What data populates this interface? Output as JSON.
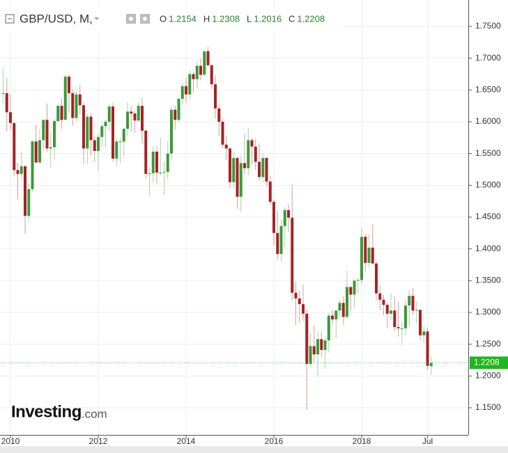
{
  "chart_data": {
    "type": "candlestick",
    "title": "GBP/USD, M,",
    "legend": [
      {
        "key": "O",
        "value": 1.2154
      },
      {
        "key": "H",
        "value": 1.2308
      },
      {
        "key": "L",
        "value": 1.2016
      },
      {
        "key": "C",
        "value": 1.2208
      }
    ],
    "last_price": 1.2208,
    "logo": "Investing",
    "logo_suffix": ".com",
    "up_color": "#3a9a3a",
    "down_color": "#a52323",
    "grid": true,
    "xlim": [
      -0.86,
      127.14
    ],
    "xticks": [
      {
        "value": 2,
        "label": "2010"
      },
      {
        "value": 26,
        "label": "2012"
      },
      {
        "value": 50,
        "label": "2014"
      },
      {
        "value": 74,
        "label": "2016"
      },
      {
        "value": 98,
        "label": "2018"
      },
      {
        "value": 116,
        "label": "Jul"
      }
    ],
    "ylim": [
      1.1073,
      1.7916
    ],
    "yticks": [
      {
        "value": 1.15,
        "label": "1.1500"
      },
      {
        "value": 1.2,
        "label": "1.2000"
      },
      {
        "value": 1.25,
        "label": "1.2500"
      },
      {
        "value": 1.3,
        "label": "1.3000"
      },
      {
        "value": 1.35,
        "label": "1.3500"
      },
      {
        "value": 1.4,
        "label": "1.4000"
      },
      {
        "value": 1.45,
        "label": "1.4500"
      },
      {
        "value": 1.5,
        "label": "1.5000"
      },
      {
        "value": 1.55,
        "label": "1.5500"
      },
      {
        "value": 1.6,
        "label": "1.6000"
      },
      {
        "value": 1.65,
        "label": "1.6500"
      },
      {
        "value": 1.7,
        "label": "1.7000"
      },
      {
        "value": 1.75,
        "label": "1.7500"
      }
    ],
    "open": [
      1.644,
      1.645,
      1.615,
      1.598,
      1.524,
      1.518,
      1.53,
      1.452,
      1.494,
      1.569,
      1.536,
      1.571,
      1.603,
      1.558,
      1.56,
      1.601,
      1.625,
      1.603,
      1.671,
      1.645,
      1.606,
      1.643,
      1.626,
      1.558,
      1.608,
      1.571,
      1.554,
      1.576,
      1.593,
      1.6,
      1.624,
      1.542,
      1.569,
      1.569,
      1.589,
      1.616,
      1.613,
      1.602,
      1.625,
      1.586,
      1.518,
      1.519,
      1.553,
      1.52,
      1.52,
      1.521,
      1.55,
      1.619,
      1.603,
      1.636,
      1.656,
      1.643,
      1.675,
      1.667,
      1.688,
      1.674,
      1.711,
      1.689,
      1.659,
      1.621,
      1.6,
      1.564,
      1.558,
      1.505,
      1.543,
      1.482,
      1.535,
      1.527,
      1.571,
      1.561,
      1.537,
      1.513,
      1.543,
      1.506,
      1.474,
      1.425,
      1.392,
      1.436,
      1.461,
      1.449,
      1.331,
      1.322,
      1.313,
      1.298,
      1.219,
      1.247,
      1.234,
      1.258,
      1.241,
      1.256,
      1.295,
      1.289,
      1.303,
      1.315,
      1.293,
      1.34,
      1.328,
      1.35,
      1.351,
      1.419,
      1.378,
      1.402,
      1.377,
      1.33,
      1.32,
      1.312,
      1.298,
      1.303,
      1.277,
      1.275,
      1.275,
      1.311,
      1.326,
      1.303,
      1.304,
      1.264,
      1.27,
      1.2154
    ],
    "high": [
      1.684,
      1.669,
      1.643,
      1.599,
      1.535,
      1.553,
      1.532,
      1.503,
      1.571,
      1.595,
      1.588,
      1.603,
      1.629,
      1.584,
      1.604,
      1.629,
      1.636,
      1.675,
      1.675,
      1.651,
      1.648,
      1.658,
      1.63,
      1.613,
      1.614,
      1.577,
      1.581,
      1.599,
      1.604,
      1.628,
      1.63,
      1.574,
      1.574,
      1.59,
      1.631,
      1.625,
      1.617,
      1.631,
      1.638,
      1.588,
      1.529,
      1.561,
      1.561,
      1.575,
      1.538,
      1.57,
      1.623,
      1.626,
      1.638,
      1.66,
      1.668,
      1.68,
      1.678,
      1.695,
      1.7,
      1.711,
      1.718,
      1.69,
      1.673,
      1.627,
      1.605,
      1.578,
      1.559,
      1.552,
      1.545,
      1.547,
      1.581,
      1.59,
      1.575,
      1.573,
      1.566,
      1.551,
      1.545,
      1.515,
      1.477,
      1.46,
      1.446,
      1.466,
      1.47,
      1.501,
      1.348,
      1.334,
      1.344,
      1.304,
      1.267,
      1.28,
      1.27,
      1.27,
      1.262,
      1.299,
      1.304,
      1.302,
      1.32,
      1.326,
      1.366,
      1.342,
      1.352,
      1.354,
      1.434,
      1.424,
      1.423,
      1.438,
      1.38,
      1.342,
      1.328,
      1.316,
      1.33,
      1.325,
      1.317,
      1.285,
      1.321,
      1.335,
      1.338,
      1.318,
      1.305,
      1.278,
      1.276,
      1.2308
    ],
    "low": [
      1.63,
      1.585,
      1.587,
      1.515,
      1.478,
      1.51,
      1.423,
      1.442,
      1.49,
      1.535,
      1.534,
      1.555,
      1.553,
      1.529,
      1.54,
      1.601,
      1.589,
      1.603,
      1.614,
      1.594,
      1.6,
      1.613,
      1.533,
      1.534,
      1.546,
      1.537,
      1.523,
      1.56,
      1.56,
      1.585,
      1.537,
      1.53,
      1.535,
      1.545,
      1.578,
      1.585,
      1.583,
      1.6,
      1.566,
      1.51,
      1.484,
      1.505,
      1.502,
      1.516,
      1.485,
      1.51,
      1.541,
      1.588,
      1.6,
      1.627,
      1.63,
      1.635,
      1.646,
      1.653,
      1.665,
      1.673,
      1.686,
      1.652,
      1.605,
      1.578,
      1.559,
      1.54,
      1.495,
      1.495,
      1.463,
      1.458,
      1.518,
      1.516,
      1.533,
      1.524,
      1.507,
      1.505,
      1.5,
      1.47,
      1.405,
      1.382,
      1.38,
      1.403,
      1.427,
      1.32,
      1.28,
      1.284,
      1.287,
      1.147,
      1.215,
      1.222,
      1.199,
      1.23,
      1.211,
      1.237,
      1.28,
      1.259,
      1.293,
      1.28,
      1.29,
      1.302,
      1.306,
      1.33,
      1.345,
      1.365,
      1.371,
      1.376,
      1.32,
      1.303,
      1.296,
      1.275,
      1.287,
      1.271,
      1.262,
      1.249,
      1.264,
      1.278,
      1.296,
      1.283,
      1.256,
      1.252,
      1.209,
      1.2016
    ],
    "close": [
      1.645,
      1.615,
      1.598,
      1.524,
      1.518,
      1.53,
      1.452,
      1.494,
      1.569,
      1.536,
      1.571,
      1.603,
      1.558,
      1.56,
      1.601,
      1.625,
      1.603,
      1.671,
      1.645,
      1.606,
      1.643,
      1.626,
      1.558,
      1.608,
      1.571,
      1.554,
      1.576,
      1.593,
      1.6,
      1.624,
      1.542,
      1.569,
      1.569,
      1.589,
      1.616,
      1.613,
      1.602,
      1.625,
      1.586,
      1.518,
      1.519,
      1.553,
      1.52,
      1.52,
      1.521,
      1.55,
      1.619,
      1.603,
      1.636,
      1.656,
      1.643,
      1.675,
      1.667,
      1.688,
      1.674,
      1.711,
      1.689,
      1.659,
      1.621,
      1.6,
      1.564,
      1.558,
      1.505,
      1.543,
      1.482,
      1.535,
      1.527,
      1.571,
      1.561,
      1.537,
      1.513,
      1.543,
      1.506,
      1.474,
      1.425,
      1.392,
      1.436,
      1.461,
      1.449,
      1.331,
      1.322,
      1.313,
      1.298,
      1.219,
      1.247,
      1.234,
      1.258,
      1.241,
      1.256,
      1.295,
      1.289,
      1.303,
      1.315,
      1.293,
      1.34,
      1.328,
      1.35,
      1.351,
      1.419,
      1.378,
      1.402,
      1.377,
      1.33,
      1.32,
      1.312,
      1.298,
      1.303,
      1.277,
      1.275,
      1.275,
      1.311,
      1.326,
      1.303,
      1.304,
      1.264,
      1.27,
      1.216,
      1.2208
    ]
  }
}
